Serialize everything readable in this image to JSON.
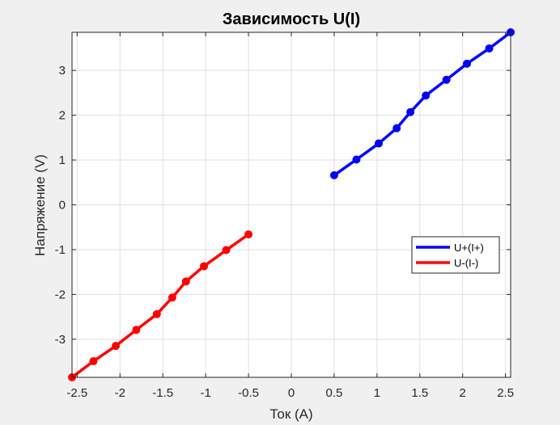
{
  "chart_data": {
    "type": "line",
    "title": "Зависимость U(I)",
    "xlabel": "Ток (A)",
    "ylabel": "Напряжение (V)",
    "xlim": [
      -2.56,
      2.56
    ],
    "ylim": [
      -3.85,
      3.85
    ],
    "xticks": [
      -2.5,
      -2,
      -1.5,
      -1,
      -0.5,
      0,
      0.5,
      1,
      1.5,
      2,
      2.5
    ],
    "xtick_labels": [
      "-2.5",
      "-2",
      "-1.5",
      "-1",
      "-0.5",
      "0",
      "0.5",
      "1",
      "1.5",
      "2",
      "2.5"
    ],
    "yticks": [
      -3,
      -2,
      -1,
      0,
      1,
      2,
      3
    ],
    "ytick_labels": [
      "-3",
      "-2",
      "-1",
      "0",
      "1",
      "2",
      "3"
    ],
    "grid": true,
    "legend_position": "right",
    "series": [
      {
        "name": "U+(I+)",
        "color": "#0000ff",
        "x": [
          0.5,
          0.76,
          1.02,
          1.23,
          1.39,
          1.57,
          1.81,
          2.05,
          2.31,
          2.56
        ],
        "y": [
          0.66,
          1.01,
          1.37,
          1.71,
          2.07,
          2.44,
          2.79,
          3.15,
          3.49,
          3.85
        ]
      },
      {
        "name": "U-(I-)",
        "color": "#ff0000",
        "x": [
          -0.5,
          -0.76,
          -1.02,
          -1.23,
          -1.39,
          -1.57,
          -1.81,
          -2.05,
          -2.31,
          -2.56
        ],
        "y": [
          -0.66,
          -1.01,
          -1.37,
          -1.71,
          -2.07,
          -2.44,
          -2.79,
          -3.15,
          -3.49,
          -3.85
        ]
      }
    ]
  }
}
